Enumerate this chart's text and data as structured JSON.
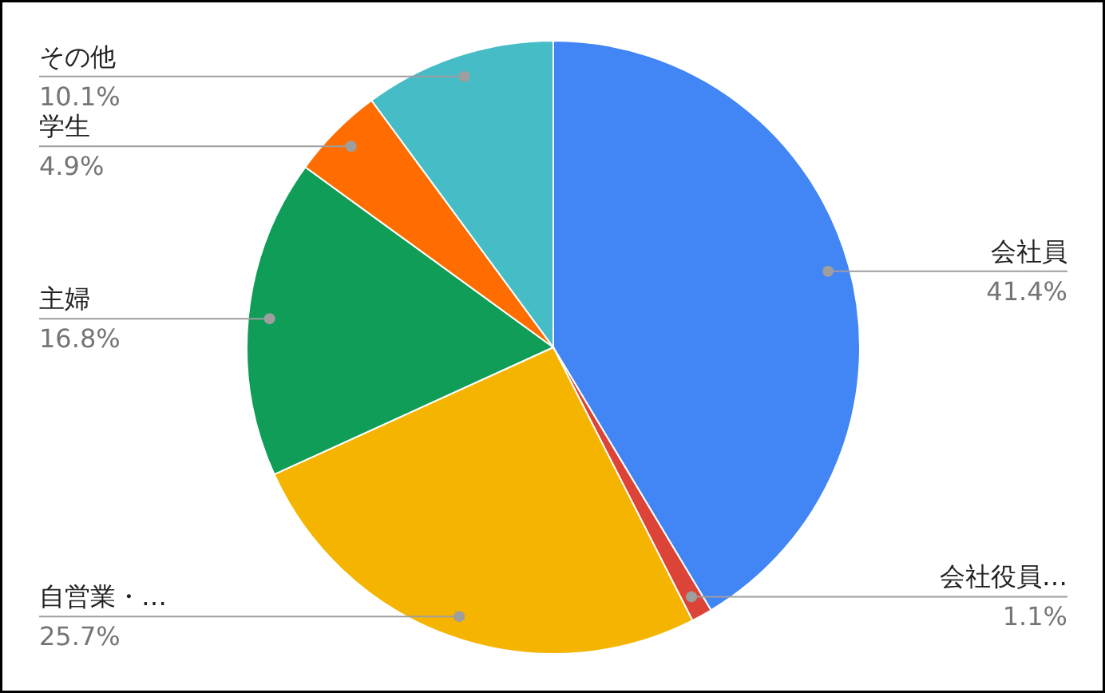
{
  "chart_data": {
    "type": "pie",
    "categories": [
      "会社員",
      "会社役員…",
      "自営業・…",
      "主婦",
      "学生",
      "その他"
    ],
    "values": [
      41.4,
      1.1,
      25.7,
      16.8,
      4.9,
      10.1
    ],
    "colors": [
      "#4285f4",
      "#db4437",
      "#f4b400",
      "#0f9d58",
      "#ff6d01",
      "#46bdc6"
    ],
    "value_labels": [
      "41.4%",
      "1.1%",
      "25.7%",
      "16.8%",
      "4.9%",
      "10.1%"
    ]
  }
}
